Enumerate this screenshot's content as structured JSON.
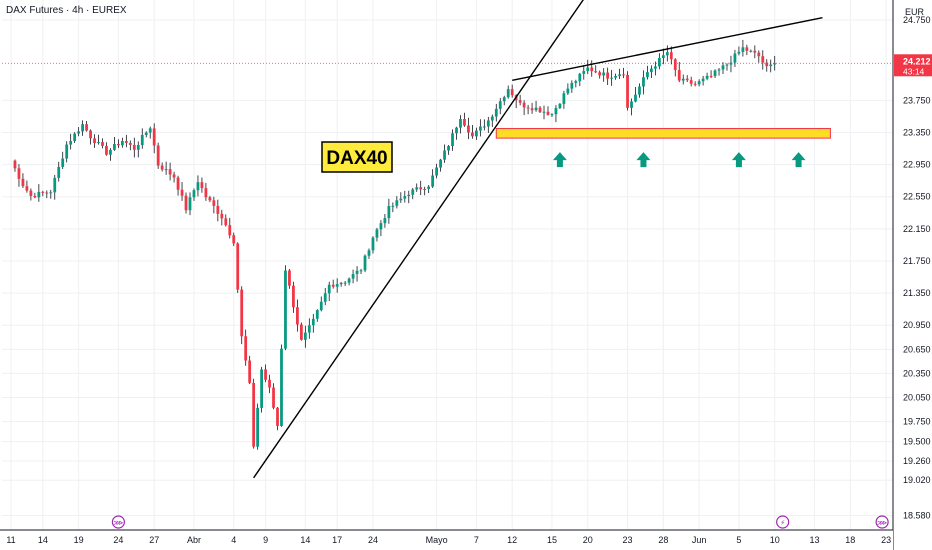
{
  "header": {
    "title": "DAX Futures · 4h · EUREX"
  },
  "currency": "EUR",
  "price_label": {
    "value": "24.212",
    "countdown": "43:14"
  },
  "annotation_text": "DAX40",
  "colors": {
    "up": "#089981",
    "down": "#f23645",
    "wick": "#131722",
    "trendline": "#000000",
    "support_fill": "#ffd700",
    "support_border": "#f23645",
    "arrow": "#089981",
    "event_icon": "#9c27b0",
    "price_tag": "#f23645",
    "grid": "#eef0f3"
  },
  "chart_data": {
    "type": "candlestick",
    "title": "DAX Futures · 4h · EUREX",
    "ylim": [
      18400,
      25000
    ],
    "y_ticks": [
      {
        "label": "24.750",
        "value": 24750
      },
      {
        "label": "24.212",
        "value": 24212
      },
      {
        "label": "23.750",
        "value": 23750
      },
      {
        "label": "23.350",
        "value": 23350
      },
      {
        "label": "22.950",
        "value": 22950
      },
      {
        "label": "22.550",
        "value": 22550
      },
      {
        "label": "22.150",
        "value": 22150
      },
      {
        "label": "21.750",
        "value": 21750
      },
      {
        "label": "21.350",
        "value": 21350
      },
      {
        "label": "20.950",
        "value": 20950
      },
      {
        "label": "20.650",
        "value": 20650
      },
      {
        "label": "20.350",
        "value": 20350
      },
      {
        "label": "20.050",
        "value": 20050
      },
      {
        "label": "19.750",
        "value": 19750
      },
      {
        "label": "19.500",
        "value": 19500
      },
      {
        "label": "19.260",
        "value": 19260
      },
      {
        "label": "19.020",
        "value": 19020
      },
      {
        "label": "18.580",
        "value": 18580
      }
    ],
    "x_ticks": [
      {
        "label": "11",
        "i": 0
      },
      {
        "label": "14",
        "i": 8
      },
      {
        "label": "19",
        "i": 17
      },
      {
        "label": "24",
        "i": 27
      },
      {
        "label": "27",
        "i": 36
      },
      {
        "label": "Abr",
        "i": 46
      },
      {
        "label": "4",
        "i": 56
      },
      {
        "label": "9",
        "i": 64
      },
      {
        "label": "14",
        "i": 74
      },
      {
        "label": "17",
        "i": 82
      },
      {
        "label": "24",
        "i": 91
      },
      {
        "label": "Mayo",
        "i": 107
      },
      {
        "label": "7",
        "i": 117
      },
      {
        "label": "12",
        "i": 126
      },
      {
        "label": "15",
        "i": 136
      },
      {
        "label": "20",
        "i": 145
      },
      {
        "label": "23",
        "i": 155
      },
      {
        "label": "28",
        "i": 164
      },
      {
        "label": "Jun",
        "i": 173
      },
      {
        "label": "5",
        "i": 183
      },
      {
        "label": "10",
        "i": 192
      },
      {
        "label": "13",
        "i": 202
      },
      {
        "label": "18",
        "i": 211
      },
      {
        "label": "23",
        "i": 220
      }
    ],
    "key_prices": [
      {
        "i": 0,
        "price": 23000
      },
      {
        "i": 3,
        "price": 22700
      },
      {
        "i": 5,
        "price": 22560
      },
      {
        "i": 10,
        "price": 22620
      },
      {
        "i": 14,
        "price": 23200
      },
      {
        "i": 18,
        "price": 23450
      },
      {
        "i": 20,
        "price": 23300
      },
      {
        "i": 24,
        "price": 23100
      },
      {
        "i": 28,
        "price": 23250
      },
      {
        "i": 31,
        "price": 23150
      },
      {
        "i": 35,
        "price": 23420
      },
      {
        "i": 37,
        "price": 22950
      },
      {
        "i": 41,
        "price": 22800
      },
      {
        "i": 44,
        "price": 22400
      },
      {
        "i": 47,
        "price": 22750
      },
      {
        "i": 49,
        "price": 22550
      },
      {
        "i": 53,
        "price": 22300
      },
      {
        "i": 56,
        "price": 22000
      },
      {
        "i": 58,
        "price": 20800
      },
      {
        "i": 60,
        "price": 20200
      },
      {
        "i": 61,
        "price": 19450
      },
      {
        "i": 63,
        "price": 20400
      },
      {
        "i": 65,
        "price": 20150
      },
      {
        "i": 67,
        "price": 19700
      },
      {
        "i": 69,
        "price": 21650
      },
      {
        "i": 71,
        "price": 21200
      },
      {
        "i": 73,
        "price": 20750
      },
      {
        "i": 76,
        "price": 21000
      },
      {
        "i": 80,
        "price": 21450
      },
      {
        "i": 84,
        "price": 21500
      },
      {
        "i": 88,
        "price": 21650
      },
      {
        "i": 91,
        "price": 22050
      },
      {
        "i": 95,
        "price": 22400
      },
      {
        "i": 100,
        "price": 22600
      },
      {
        "i": 105,
        "price": 22700
      },
      {
        "i": 110,
        "price": 23200
      },
      {
        "i": 113,
        "price": 23550
      },
      {
        "i": 116,
        "price": 23300
      },
      {
        "i": 120,
        "price": 23500
      },
      {
        "i": 125,
        "price": 23900
      },
      {
        "i": 128,
        "price": 23700
      },
      {
        "i": 132,
        "price": 23650
      },
      {
        "i": 136,
        "price": 23580
      },
      {
        "i": 140,
        "price": 23900
      },
      {
        "i": 145,
        "price": 24150
      },
      {
        "i": 150,
        "price": 24050
      },
      {
        "i": 154,
        "price": 24100
      },
      {
        "i": 155,
        "price": 23650
      },
      {
        "i": 160,
        "price": 24100
      },
      {
        "i": 165,
        "price": 24350
      },
      {
        "i": 168,
        "price": 24000
      },
      {
        "i": 172,
        "price": 23950
      },
      {
        "i": 176,
        "price": 24050
      },
      {
        "i": 180,
        "price": 24200
      },
      {
        "i": 184,
        "price": 24400
      },
      {
        "i": 188,
        "price": 24300
      },
      {
        "i": 190,
        "price": 24150
      },
      {
        "i": 192,
        "price": 24212
      }
    ],
    "trendlines": [
      {
        "from": {
          "i": 61,
          "price": 19050
        },
        "to": {
          "i": 148,
          "price": 25300
        }
      },
      {
        "from": {
          "i": 126,
          "price": 24000
        },
        "to": {
          "i": 204,
          "price": 24780
        }
      }
    ],
    "support_zone": {
      "i_from": 122,
      "i_to": 206,
      "price_top": 23400,
      "price_bottom": 23280
    },
    "support_arrows_i": [
      138,
      159,
      183,
      198
    ],
    "event_icons_i": [
      27,
      194,
      219
    ],
    "event_icon_symbols": [
      "⋙",
      "⚡",
      "⋙"
    ],
    "last_price": 24212
  }
}
